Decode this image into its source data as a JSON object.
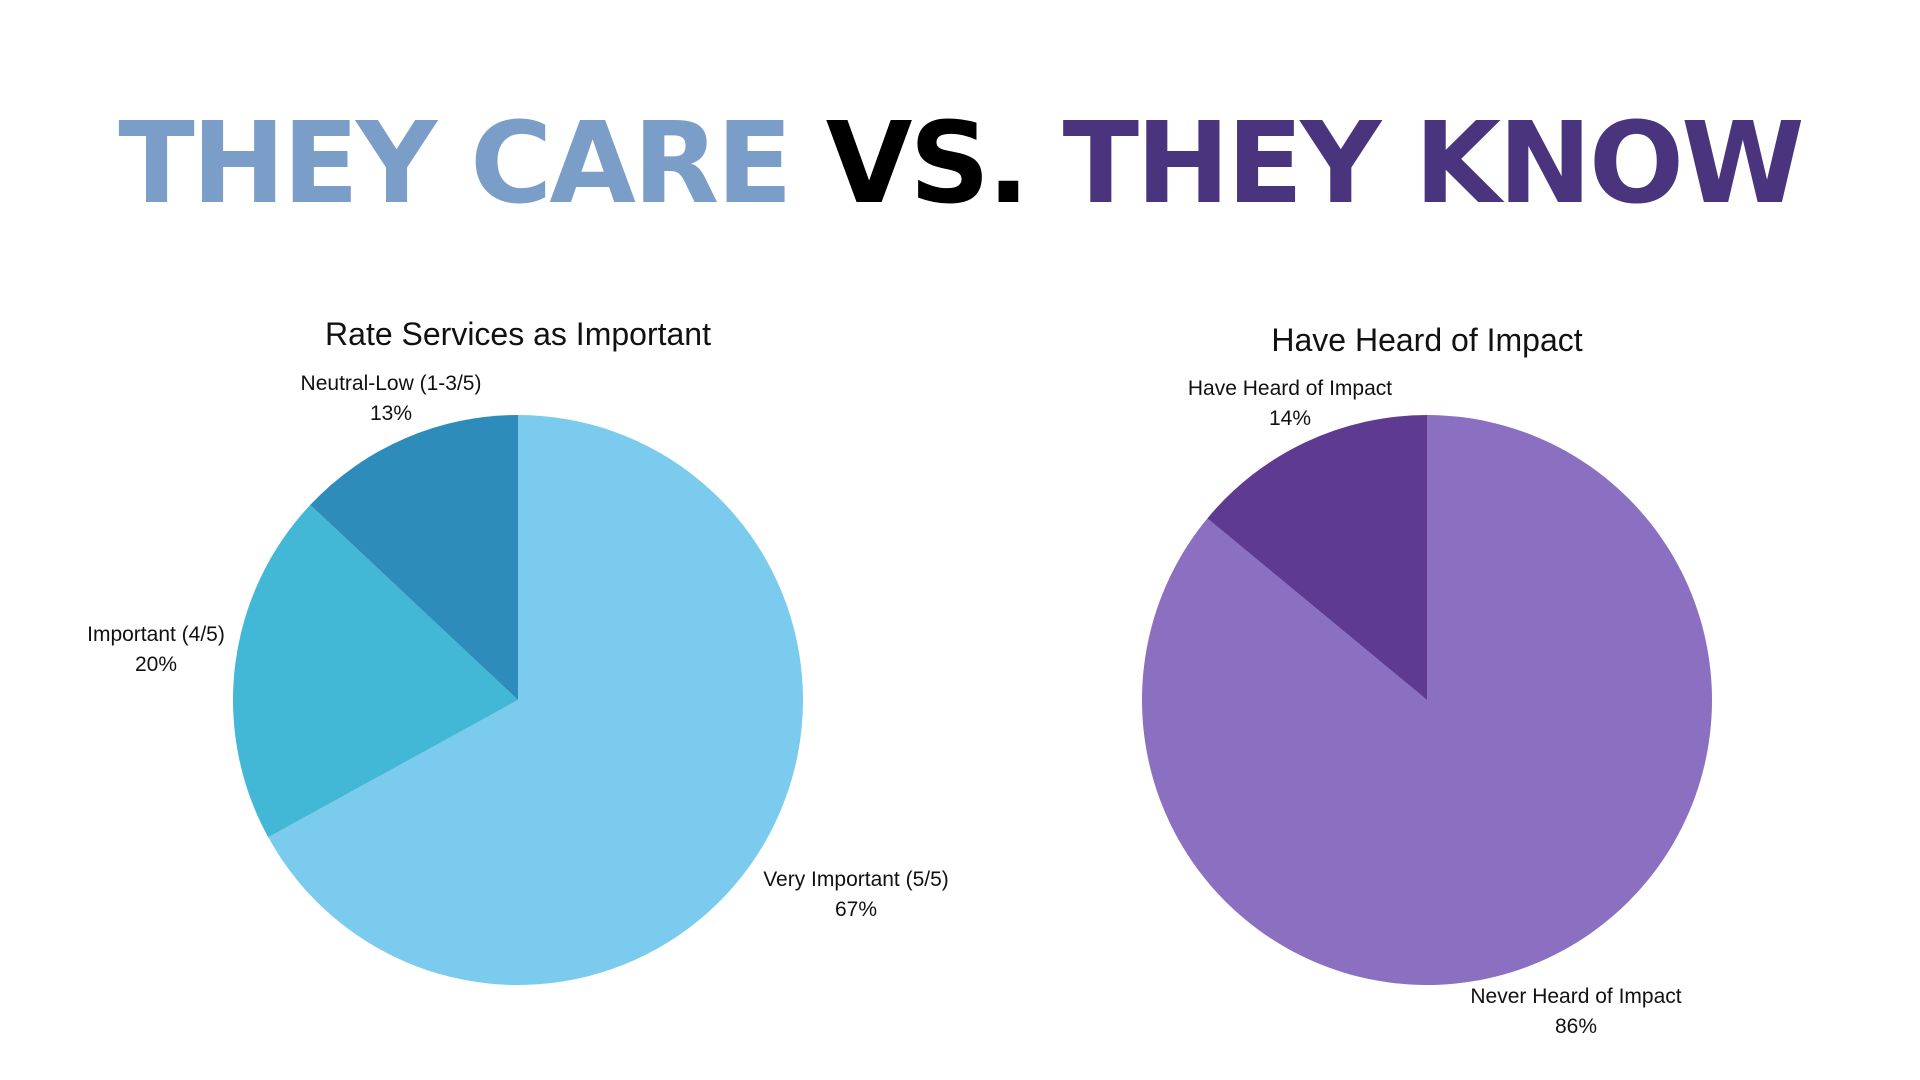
{
  "headline": {
    "part1": "THEY CARE",
    "part2": "VS.",
    "part3": "THEY KNOW",
    "color1": "#7b9ec8",
    "color2": "#000000",
    "color3": "#4b347e"
  },
  "chart_data": [
    {
      "type": "pie",
      "title": "Rate Services as Important",
      "slices": [
        {
          "label": "Very Important (5/5)",
          "value": 67,
          "value_label": "67%",
          "color": "#7bcbef"
        },
        {
          "label": "Important (4/5)",
          "value": 20,
          "value_label": "20%",
          "color": "#43b8d6"
        },
        {
          "label": "Neutral-Low (1-3/5)",
          "value": 13,
          "value_label": "13%",
          "color": "#2e8cba"
        }
      ]
    },
    {
      "type": "pie",
      "title": "Have Heard of Impact",
      "slices": [
        {
          "label": "Never Heard of Impact",
          "value": 86,
          "value_label": "86%",
          "color": "#8b6fc1"
        },
        {
          "label": "Have Heard of Impact",
          "value": 14,
          "value_label": "14%",
          "color": "#5e3b91"
        }
      ]
    }
  ]
}
